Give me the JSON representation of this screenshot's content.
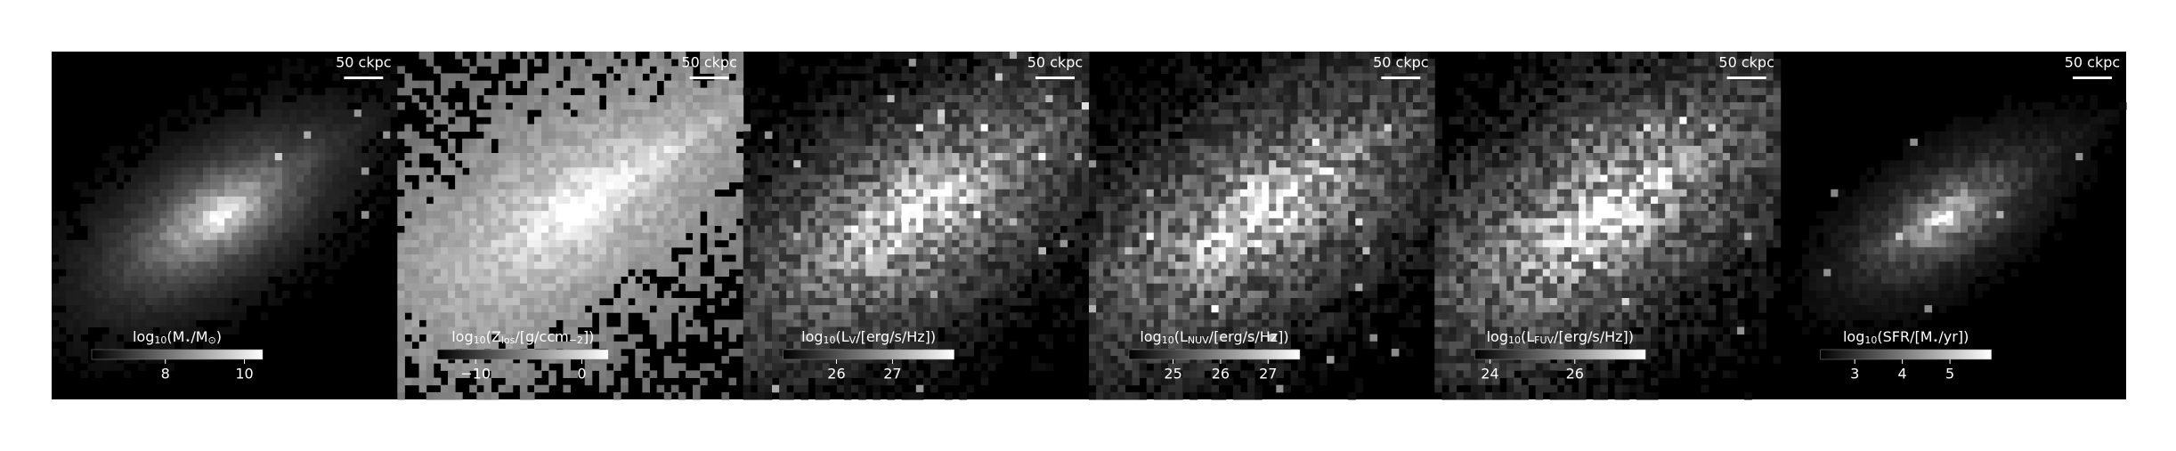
{
  "panels": [
    {
      "scalebar": "50 ckpc",
      "label": [
        "log",
        "10",
        "(M",
        "⋆",
        "/M",
        "⊙",
        ")"
      ],
      "clim": [
        6.14,
        10.46
      ],
      "ticks": [
        8,
        10
      ]
    },
    {
      "scalebar": "50 ckpc",
      "label": [
        "log",
        "10",
        "(Z",
        "los",
        "/[g/ccm",
        "−2",
        "])"
      ],
      "clim": [
        -13.6,
        2.5
      ],
      "ticks": [
        {
          "value": -10,
          "label": "−10"
        },
        0
      ]
    },
    {
      "scalebar": "50 ckpc",
      "label": [
        "log",
        "10",
        "(L",
        "V",
        "/[erg/s/Hz])"
      ],
      "clim": [
        25.05,
        28.1
      ],
      "ticks": [
        26,
        27
      ]
    },
    {
      "scalebar": "50 ckpc",
      "label": [
        "log",
        "10",
        "(L",
        "NUV",
        "/[erg/s/Hz])"
      ],
      "clim": [
        24.07,
        27.67
      ],
      "ticks": [
        25,
        26,
        27
      ]
    },
    {
      "scalebar": "50 ckpc",
      "label": [
        "log",
        "10",
        "(L",
        "FUV",
        "/[erg/s/Hz])"
      ],
      "clim": [
        23.64,
        27.67
      ],
      "ticks": [
        24,
        26
      ]
    },
    {
      "scalebar": "50 ckpc",
      "label": [
        "log",
        "10",
        "(SFR/[M",
        "⋆",
        "/yr])"
      ],
      "clim": [
        2.28,
        5.87
      ],
      "ticks": [
        3,
        4,
        5
      ]
    }
  ]
}
